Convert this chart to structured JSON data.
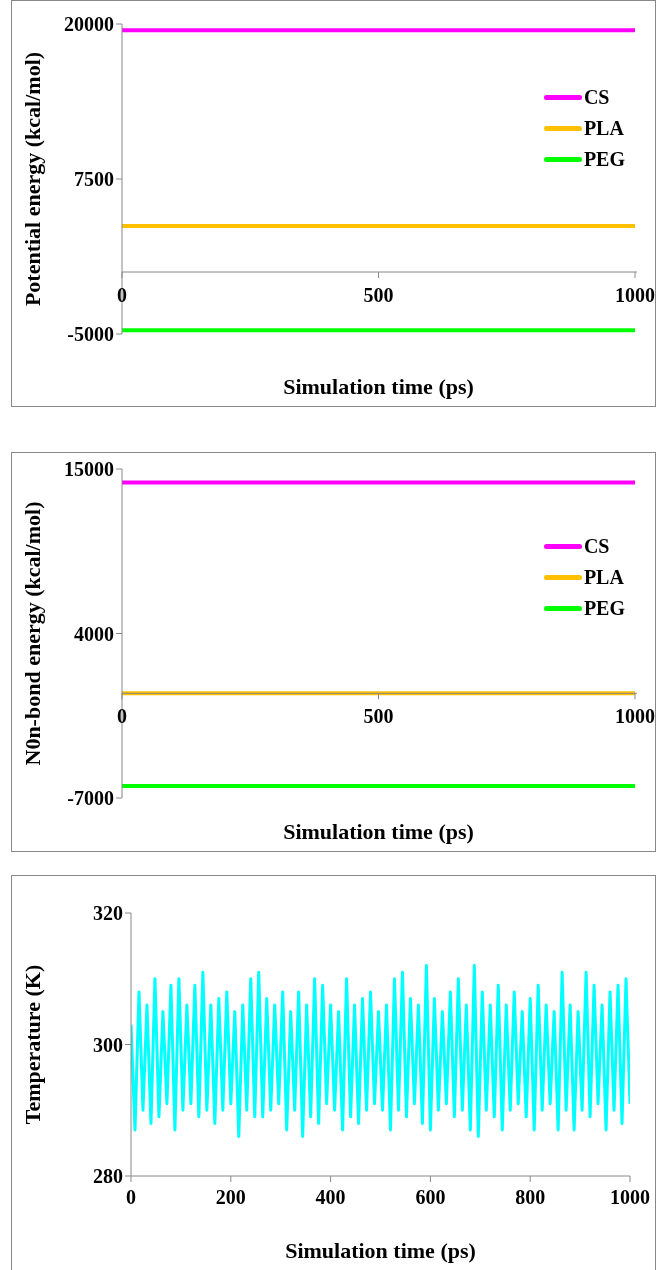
{
  "chart_data": [
    {
      "type": "line",
      "xlabel": "Simulation time (ps)",
      "ylabel": "Potential energy (kcal/mol)",
      "x": [
        0,
        1000
      ],
      "xlim": [
        0,
        1000
      ],
      "xticks": [
        0,
        500,
        1000
      ],
      "ylim": [
        -5000,
        20000
      ],
      "yticks": [
        -5000,
        7500,
        20000
      ],
      "legend": "right",
      "marker": "none",
      "line_style": "solid",
      "series": [
        {
          "name": "CS",
          "color": "#ff00ff",
          "values": [
            19500,
            19500
          ]
        },
        {
          "name": "PLA",
          "color": "#ffc000",
          "values": [
            3700,
            3700
          ]
        },
        {
          "name": "PEG",
          "color": "#00ff00",
          "values": [
            -4700,
            -4700
          ]
        }
      ]
    },
    {
      "type": "line",
      "xlabel": "Simulation time (ps)",
      "ylabel": "N0n-bond energy (kcal/mol)",
      "x": [
        0,
        1000
      ],
      "xlim": [
        0,
        1000
      ],
      "xticks": [
        0,
        500,
        1000
      ],
      "ylim": [
        -7000,
        15000
      ],
      "yticks": [
        -7000,
        4000,
        15000
      ],
      "legend": "right",
      "marker": "none",
      "line_style": "solid",
      "series": [
        {
          "name": "CS",
          "color": "#ff00ff",
          "values": [
            14100,
            14100
          ]
        },
        {
          "name": "PLA",
          "color": "#ffc000",
          "values": [
            0,
            0
          ]
        },
        {
          "name": "PEG",
          "color": "#00ff00",
          "values": [
            -6200,
            -6200
          ]
        }
      ]
    },
    {
      "type": "line",
      "xlabel": "Simulation time (ps)",
      "ylabel": "Temperature (K)",
      "xlim": [
        0,
        1000
      ],
      "xticks": [
        0,
        200,
        400,
        600,
        800,
        1000
      ],
      "ylim": [
        280,
        320
      ],
      "yticks": [
        280,
        300,
        320
      ],
      "legend": false,
      "marker": "none",
      "line_style": "solid",
      "x": [
        0,
        8,
        16,
        24,
        32,
        40,
        48,
        56,
        64,
        72,
        80,
        88,
        96,
        104,
        112,
        120,
        128,
        136,
        144,
        152,
        160,
        168,
        176,
        184,
        192,
        200,
        208,
        216,
        224,
        232,
        240,
        248,
        256,
        264,
        272,
        280,
        288,
        296,
        304,
        312,
        320,
        328,
        336,
        344,
        352,
        360,
        368,
        376,
        384,
        392,
        400,
        408,
        416,
        424,
        432,
        440,
        448,
        456,
        464,
        472,
        480,
        488,
        496,
        504,
        512,
        520,
        528,
        536,
        544,
        552,
        560,
        568,
        576,
        584,
        592,
        600,
        608,
        616,
        624,
        632,
        640,
        648,
        656,
        664,
        672,
        680,
        688,
        696,
        704,
        712,
        720,
        728,
        736,
        744,
        752,
        760,
        768,
        776,
        784,
        792,
        800,
        808,
        816,
        824,
        832,
        840,
        848,
        856,
        864,
        872,
        880,
        888,
        896,
        904,
        912,
        920,
        928,
        936,
        944,
        952,
        960,
        968,
        976,
        984,
        992,
        1000
      ],
      "series": [
        {
          "color": "#00ffff",
          "values": [
            303,
            287,
            308,
            290,
            306,
            288,
            310,
            289,
            305,
            291,
            309,
            287,
            310,
            290,
            306,
            291,
            309,
            289,
            311,
            290,
            306,
            288,
            307,
            290,
            308,
            291,
            305,
            286,
            306,
            290,
            310,
            289,
            311,
            289,
            307,
            290,
            306,
            291,
            308,
            287,
            305,
            290,
            308,
            286,
            306,
            289,
            310,
            288,
            309,
            291,
            306,
            290,
            305,
            287,
            310,
            289,
            306,
            288,
            307,
            290,
            308,
            291,
            305,
            290,
            306,
            287,
            310,
            290,
            311,
            289,
            307,
            291,
            306,
            288,
            312,
            287,
            307,
            290,
            305,
            291,
            308,
            289,
            310,
            290,
            306,
            287,
            312,
            286,
            308,
            290,
            306,
            289,
            309,
            287,
            306,
            290,
            308,
            291,
            305,
            289,
            307,
            287,
            309,
            290,
            306,
            291,
            305,
            287,
            311,
            290,
            306,
            287,
            305,
            290,
            311,
            289,
            309,
            291,
            306,
            287,
            308,
            290,
            309,
            288,
            310,
            291
          ]
        }
      ]
    }
  ]
}
